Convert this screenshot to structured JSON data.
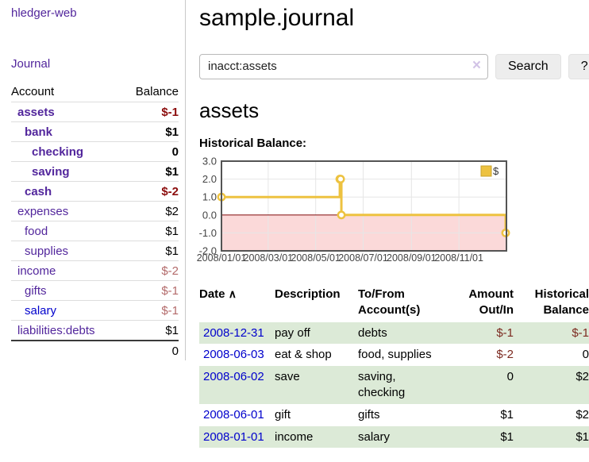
{
  "brand": "hledger-web",
  "nav": {
    "journal": "Journal"
  },
  "header": {
    "title": "sample.journal"
  },
  "search": {
    "query": "inacct:assets",
    "clear_icon": "×",
    "button_label": "Search",
    "help_label": "?"
  },
  "sidebar": {
    "columns": {
      "account": "Account",
      "balance": "Balance"
    },
    "accounts": [
      {
        "label": "assets",
        "depth": 1,
        "bold": true,
        "balance": "$-1",
        "balance_class": "neg-strong",
        "link_class": ""
      },
      {
        "label": "bank",
        "depth": 2,
        "bold": true,
        "balance": "$1",
        "balance_class": "",
        "link_class": ""
      },
      {
        "label": "checking",
        "depth": 3,
        "bold": true,
        "balance": "0",
        "balance_class": "",
        "link_class": ""
      },
      {
        "label": "saving",
        "depth": 3,
        "bold": true,
        "balance": "$1",
        "balance_class": "",
        "link_class": ""
      },
      {
        "label": "cash",
        "depth": 2,
        "bold": true,
        "balance": "$-2",
        "balance_class": "neg-strong",
        "link_class": ""
      },
      {
        "label": "expenses",
        "depth": 1,
        "bold": false,
        "balance": "$2",
        "balance_class": "",
        "link_class": ""
      },
      {
        "label": "food",
        "depth": 2,
        "bold": false,
        "balance": "$1",
        "balance_class": "",
        "link_class": ""
      },
      {
        "label": "supplies",
        "depth": 2,
        "bold": false,
        "balance": "$1",
        "balance_class": "",
        "link_class": ""
      },
      {
        "label": "income",
        "depth": 1,
        "bold": false,
        "balance": "$-2",
        "balance_class": "neg-soft",
        "link_class": ""
      },
      {
        "label": "gifts",
        "depth": 2,
        "bold": false,
        "balance": "$-1",
        "balance_class": "neg-soft",
        "link_class": ""
      },
      {
        "label": "salary",
        "depth": 2,
        "bold": false,
        "balance": "$-1",
        "balance_class": "neg-soft",
        "link_class": "blue"
      },
      {
        "label": "liabilities:debts",
        "depth": 1,
        "bold": false,
        "balance": "$1",
        "balance_class": "",
        "link_class": ""
      }
    ],
    "total": "0"
  },
  "account_page": {
    "heading": "assets",
    "chart_label": "Historical Balance:"
  },
  "chart_data": {
    "type": "line",
    "step": true,
    "title": "Historical Balance:",
    "series": [
      {
        "name": "$",
        "color": "#edc240",
        "points": [
          [
            "2008-01-01",
            1
          ],
          [
            "2008-06-01",
            2
          ],
          [
            "2008-06-02",
            2
          ],
          [
            "2008-06-03",
            0
          ],
          [
            "2008-12-31",
            -1
          ]
        ]
      }
    ],
    "ylim": [
      -2,
      3
    ],
    "yticks": [
      3,
      2,
      1,
      0,
      -1,
      -2
    ],
    "ytick_labels": [
      "3.0",
      "2.0",
      "1.0",
      "0.0",
      "-1.0",
      "-2.0"
    ],
    "xtick_dates": [
      "2008-01-01",
      "2008-03-01",
      "2008-05-01",
      "2008-07-01",
      "2008-09-01",
      "2008-11-01"
    ],
    "xtick_labels": [
      "2008/01/01",
      "2008/03/01",
      "2008/05/01",
      "2008/07/01",
      "2008/09/01",
      "2008/11/01"
    ],
    "x_range": [
      "2008-01-01",
      "2008-12-31"
    ],
    "grid": true,
    "legend_position": "top-right",
    "legend_label": "$",
    "negative_fill": "#fbd9d9",
    "zero_line_color": "#8f2020",
    "border_color": "#545454",
    "gridline_color": "#e6e6e6"
  },
  "register": {
    "columns": {
      "date": "Date",
      "sort_icon": "∧",
      "description": "Description",
      "account_line1": "To/From",
      "account_line2": "Account(s)",
      "amount_line1": "Amount",
      "amount_line2": "Out/In",
      "balance_line1": "Historical",
      "balance_line2": "Balance"
    },
    "rows": [
      {
        "date": "2008-12-31",
        "description": "pay off",
        "accounts": "debts",
        "amount": "$-1",
        "amount_neg": true,
        "balance": "$-1",
        "balance_neg": true
      },
      {
        "date": "2008-06-03",
        "description": "eat & shop",
        "accounts": "food, supplies",
        "amount": "$-2",
        "amount_neg": true,
        "balance": "0",
        "balance_neg": false
      },
      {
        "date": "2008-06-02",
        "description": "save",
        "accounts": "saving, checking",
        "amount": "0",
        "amount_neg": false,
        "balance": "$2",
        "balance_neg": false
      },
      {
        "date": "2008-06-01",
        "description": "gift",
        "accounts": "gifts",
        "amount": "$1",
        "amount_neg": false,
        "balance": "$2",
        "balance_neg": false
      },
      {
        "date": "2008-01-01",
        "description": "income",
        "accounts": "salary",
        "amount": "$1",
        "amount_neg": false,
        "balance": "$1",
        "balance_neg": false
      }
    ]
  },
  "colors": {
    "link_purple": "#52269c",
    "link_blue": "#0000cc",
    "negative_strong": "#8b0c0c",
    "negative_soft": "#b36a6a",
    "register_negative": "#7c2a20",
    "striped_row_green": "#dcead7",
    "chart_series_yellow": "#edc240",
    "chart_negative_fill": "#fbd9d9",
    "chart_zero_line": "#8f2020",
    "button_bg": "#ededed"
  }
}
